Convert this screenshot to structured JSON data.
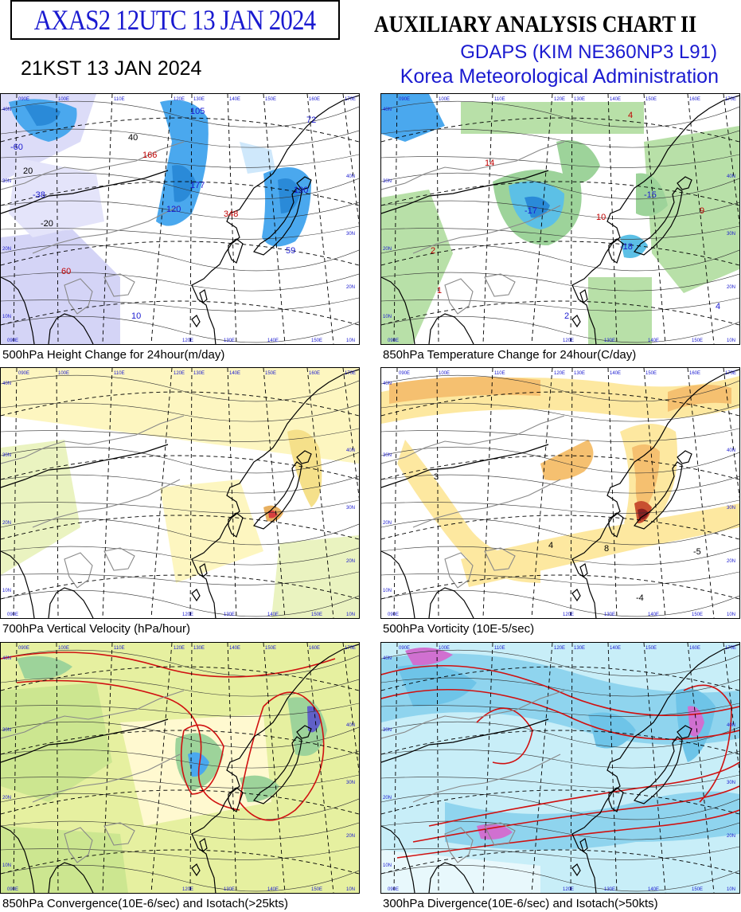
{
  "header": {
    "chart_id": "AXAS2  12UTC 13 JAN 2024",
    "local_time": "21KST 13 JAN 2024",
    "title": "AUXILIARY ANALYSIS CHART II",
    "model": "GDAPS (KIM NE360NP3 L91)",
    "agency": "Korea Meteorological Administration"
  },
  "panels": [
    {
      "caption": "500hPa Height Change for 24hour(m/day)",
      "labels": [
        {
          "text": "-60",
          "color": "#1a1ad0"
        },
        {
          "text": "105",
          "color": "#1a1ad0"
        },
        {
          "text": "166",
          "color": "#c00000"
        },
        {
          "text": "-38",
          "color": "#1a1ad0"
        },
        {
          "text": "177",
          "color": "#1a1ad0"
        },
        {
          "text": "120",
          "color": "#1a1ad0"
        },
        {
          "text": "348",
          "color": "#c00000"
        },
        {
          "text": "190",
          "color": "#1a1ad0"
        },
        {
          "text": "59",
          "color": "#1a1ad0"
        },
        {
          "text": "60",
          "color": "#c00000"
        },
        {
          "text": "10",
          "color": "#1a1ad0"
        },
        {
          "text": "72",
          "color": "#1a1ad0"
        },
        {
          "text": "-20",
          "color": "#000000"
        },
        {
          "text": "40",
          "color": "#000000"
        },
        {
          "text": "20",
          "color": "#000000"
        }
      ]
    },
    {
      "caption": "850hPa Temperature Change for 24hour(C/day)",
      "labels": [
        {
          "text": "14",
          "color": "#c00000"
        },
        {
          "text": "4",
          "color": "#c00000"
        },
        {
          "text": "-17",
          "color": "#1a1ad0"
        },
        {
          "text": "10",
          "color": "#c00000"
        },
        {
          "text": "-15",
          "color": "#1a1ad0"
        },
        {
          "text": "-18",
          "color": "#1a1ad0"
        },
        {
          "text": "9",
          "color": "#c00000"
        },
        {
          "text": "2",
          "color": "#c00000"
        },
        {
          "text": "1",
          "color": "#c00000"
        },
        {
          "text": "2",
          "color": "#1a1ad0"
        },
        {
          "text": "4",
          "color": "#1a1ad0"
        }
      ]
    },
    {
      "caption": "700hPa Vertical Velocity (hPa/hour)",
      "labels": []
    },
    {
      "caption": "500hPa Vorticity (10E-5/sec)",
      "labels": [
        {
          "text": "3",
          "color": "#000000"
        },
        {
          "text": "8",
          "color": "#000000"
        },
        {
          "text": "4",
          "color": "#000000"
        },
        {
          "text": "-5",
          "color": "#000000"
        },
        {
          "text": "-4",
          "color": "#000000"
        }
      ]
    },
    {
      "caption": "850hPa Convergence(10E-6/sec) and Isotach(>25kts)",
      "labels": []
    },
    {
      "caption": "300hPa Divergence(10E-6/sec) and Isotach(>50kts)",
      "labels": []
    }
  ],
  "axes": {
    "longitudes": [
      "090E",
      "100E",
      "110E",
      "120E",
      "130E",
      "140E",
      "150E",
      "160E",
      "170E"
    ],
    "latitudes": [
      "40N",
      "30N",
      "20N",
      "10N"
    ]
  }
}
